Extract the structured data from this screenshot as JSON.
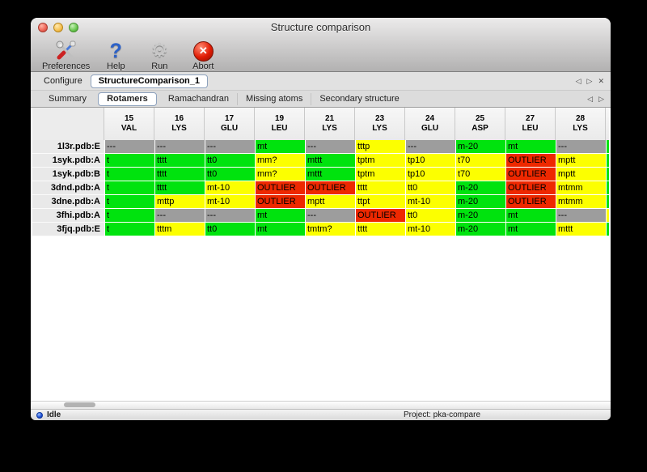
{
  "window": {
    "title": "Structure comparison"
  },
  "icons": {
    "arrow_left": "◁",
    "arrow_right": "▷",
    "close_x": "✕",
    "gear": "⚙",
    "question": "?",
    "abort_x": "✕"
  },
  "toolbar": {
    "buttons": [
      {
        "label": "Preferences",
        "icon": "tools-icon"
      },
      {
        "label": "Help",
        "icon": "question-icon"
      },
      {
        "label": "Run",
        "icon": "gear-icon"
      },
      {
        "label": "Abort",
        "icon": "abort-icon"
      }
    ]
  },
  "configure": {
    "label": "Configure",
    "active_tab": "StructureComparison_1"
  },
  "view_tabs": {
    "items": [
      {
        "label": "Summary",
        "active": false
      },
      {
        "label": "Rotamers",
        "active": true
      },
      {
        "label": "Ramachandran",
        "active": false
      },
      {
        "label": "Missing atoms",
        "active": false
      },
      {
        "label": "Secondary structure",
        "active": false
      }
    ]
  },
  "colors": {
    "green": "#00e30e",
    "yellow": "#fcff00",
    "red": "#ee2800",
    "gray": "#9d9d9d"
  },
  "table": {
    "columns": [
      {
        "num": "15",
        "res": "VAL"
      },
      {
        "num": "16",
        "res": "LYS"
      },
      {
        "num": "17",
        "res": "GLU"
      },
      {
        "num": "19",
        "res": "LEU"
      },
      {
        "num": "21",
        "res": "LYS"
      },
      {
        "num": "23",
        "res": "LYS"
      },
      {
        "num": "24",
        "res": "GLU"
      },
      {
        "num": "25",
        "res": "ASP"
      },
      {
        "num": "27",
        "res": "LEU"
      },
      {
        "num": "28",
        "res": "LYS"
      }
    ],
    "rows": [
      {
        "label": "1l3r.pdb:E",
        "edge": "green",
        "cells": [
          [
            "---",
            "gray"
          ],
          [
            "---",
            "gray"
          ],
          [
            "---",
            "gray"
          ],
          [
            "mt",
            "green"
          ],
          [
            "---",
            "gray"
          ],
          [
            "tttp",
            "yellow"
          ],
          [
            "---",
            "gray"
          ],
          [
            "m-20",
            "green"
          ],
          [
            "mt",
            "green"
          ],
          [
            "---",
            "gray"
          ]
        ]
      },
      {
        "label": "1syk.pdb:A",
        "edge": "green",
        "cells": [
          [
            "t",
            "green"
          ],
          [
            "tttt",
            "green"
          ],
          [
            "tt0",
            "green"
          ],
          [
            "mm?",
            "yellow"
          ],
          [
            "mttt",
            "green"
          ],
          [
            "tptm",
            "yellow"
          ],
          [
            "tp10",
            "yellow"
          ],
          [
            "t70",
            "yellow"
          ],
          [
            "OUTLIER",
            "red"
          ],
          [
            "mptt",
            "yellow"
          ]
        ]
      },
      {
        "label": "1syk.pdb:B",
        "edge": "green",
        "cells": [
          [
            "t",
            "green"
          ],
          [
            "tttt",
            "green"
          ],
          [
            "tt0",
            "green"
          ],
          [
            "mm?",
            "yellow"
          ],
          [
            "mttt",
            "green"
          ],
          [
            "tptm",
            "yellow"
          ],
          [
            "tp10",
            "yellow"
          ],
          [
            "t70",
            "yellow"
          ],
          [
            "OUTLIER",
            "red"
          ],
          [
            "mptt",
            "yellow"
          ]
        ]
      },
      {
        "label": "3dnd.pdb:A",
        "edge": "green",
        "cells": [
          [
            "t",
            "green"
          ],
          [
            "tttt",
            "green"
          ],
          [
            "mt-10",
            "yellow"
          ],
          [
            "OUTLIER",
            "red"
          ],
          [
            "OUTLIER",
            "red"
          ],
          [
            "tttt",
            "yellow"
          ],
          [
            "tt0",
            "yellow"
          ],
          [
            "m-20",
            "green"
          ],
          [
            "OUTLIER",
            "red"
          ],
          [
            "mtmm",
            "yellow"
          ]
        ]
      },
      {
        "label": "3dne.pdb:A",
        "edge": "green",
        "cells": [
          [
            "t",
            "green"
          ],
          [
            "mttp",
            "yellow"
          ],
          [
            "mt-10",
            "yellow"
          ],
          [
            "OUTLIER",
            "red"
          ],
          [
            "mptt",
            "yellow"
          ],
          [
            "ttpt",
            "yellow"
          ],
          [
            "mt-10",
            "yellow"
          ],
          [
            "m-20",
            "green"
          ],
          [
            "OUTLIER",
            "red"
          ],
          [
            "mtmm",
            "yellow"
          ]
        ]
      },
      {
        "label": "3fhi.pdb:A",
        "edge": "yellow",
        "cells": [
          [
            "t",
            "green"
          ],
          [
            "---",
            "gray"
          ],
          [
            "---",
            "gray"
          ],
          [
            "mt",
            "green"
          ],
          [
            "---",
            "gray"
          ],
          [
            "OUTLIER",
            "red"
          ],
          [
            "tt0",
            "yellow"
          ],
          [
            "m-20",
            "green"
          ],
          [
            "mt",
            "green"
          ],
          [
            "---",
            "gray"
          ]
        ]
      },
      {
        "label": "3fjq.pdb:E",
        "edge": "green",
        "cells": [
          [
            "t",
            "green"
          ],
          [
            "tttm",
            "yellow"
          ],
          [
            "tt0",
            "green"
          ],
          [
            "mt",
            "green"
          ],
          [
            "tmtm?",
            "yellow"
          ],
          [
            "tttt",
            "yellow"
          ],
          [
            "mt-10",
            "yellow"
          ],
          [
            "m-20",
            "green"
          ],
          [
            "mt",
            "green"
          ],
          [
            "mttt",
            "yellow"
          ]
        ]
      }
    ]
  },
  "statusbar": {
    "state": "Idle",
    "project": "Project: pka-compare"
  }
}
